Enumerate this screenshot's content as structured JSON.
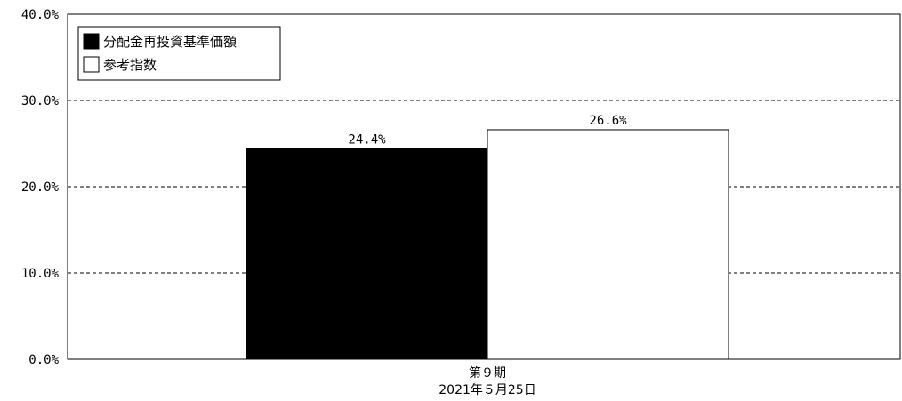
{
  "chart_data": {
    "type": "bar",
    "categories": [
      "第９期"
    ],
    "category_sublabels": [
      "2021年５月25日"
    ],
    "series": [
      {
        "name": "分配金再投資基準価額",
        "values": [
          24.4
        ],
        "labels": [
          "24.4%"
        ],
        "fill": "#000000"
      },
      {
        "name": "参考指数",
        "values": [
          26.6
        ],
        "labels": [
          "26.6%"
        ],
        "fill": "#ffffff"
      }
    ],
    "ylim": [
      0,
      40
    ],
    "yticks": [
      0,
      10,
      20,
      30,
      40
    ],
    "ytick_labels": [
      "0.0%",
      "10.0%",
      "20.0%",
      "30.0%",
      "40.0%"
    ],
    "grid": "dashed-horizontal",
    "legend_position": "top-left"
  }
}
